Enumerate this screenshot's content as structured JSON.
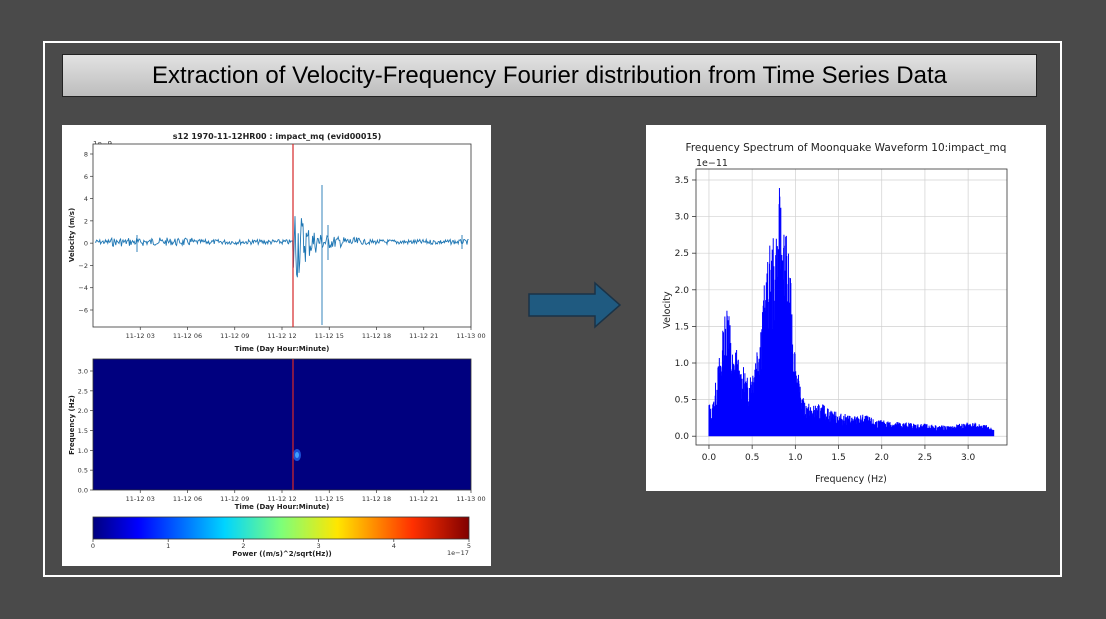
{
  "slide": {
    "title": "Extraction of Velocity-Frequency Fourier distribution from Time Series Data"
  },
  "left_figure": {
    "title": "s12 1970-11-12HR00 : impact_mq (evid00015)",
    "waveform": {
      "ylabel": "Velocity (m/s)",
      "xlabel": "Time (Day Hour:Minute)",
      "offset_label": "1e−9",
      "yticks": [
        "8",
        "6",
        "4",
        "2",
        "0",
        "−2",
        "−4",
        "−6"
      ],
      "xticks": [
        "11-12 03",
        "11-12 06",
        "11-12 09",
        "11-12 12",
        "11-12 15",
        "11-12 18",
        "11-12 21",
        "11-13 00"
      ],
      "marker_color": "#d62728",
      "trace_color": "#1f77b4"
    },
    "spectrogram": {
      "ylabel": "Frequency (Hz)",
      "xlabel": "Time (Day Hour:Minute)",
      "yticks": [
        "3.0",
        "2.5",
        "2.0",
        "1.5",
        "1.0",
        "0.5",
        "0.0"
      ],
      "xticks": [
        "11-12 03",
        "11-12 06",
        "11-12 09",
        "11-12 12",
        "11-12 15",
        "11-12 18",
        "11-12 21",
        "11-13 00"
      ],
      "background_color": "#00007f"
    },
    "colorbar": {
      "label": "Power ((m/s)^2/sqrt(Hz))",
      "ticks": [
        "0",
        "1",
        "2",
        "3",
        "4",
        "5"
      ],
      "offset_label": "1e−17",
      "colormap": "jet"
    }
  },
  "arrow": {
    "color": "#1f5a80"
  },
  "chart_data": {
    "type": "line",
    "title": "Frequency Spectrum of Moonquake Waveform 10:impact_mq",
    "xlabel": "Frequency (Hz)",
    "ylabel": "Velocity",
    "offset_label": "1e−11",
    "xlim": [
      -0.15,
      3.45
    ],
    "ylim": [
      -0.12,
      3.65
    ],
    "xticks": [
      "0.0",
      "0.5",
      "1.0",
      "1.5",
      "2.0",
      "2.5",
      "3.0"
    ],
    "yticks": [
      "0.0",
      "0.5",
      "1.0",
      "1.5",
      "2.0",
      "2.5",
      "3.0",
      "3.5"
    ],
    "grid": true,
    "color": "#0000ff",
    "series": [
      {
        "x": [
          0.0,
          0.03,
          0.06,
          0.1,
          0.13,
          0.17,
          0.2,
          0.22,
          0.25,
          0.28,
          0.31,
          0.35,
          0.4,
          0.45,
          0.5,
          0.55,
          0.6,
          0.65,
          0.7,
          0.75,
          0.8,
          0.82,
          0.85,
          0.88,
          0.92,
          0.96,
          1.0,
          1.05,
          1.1,
          1.2,
          1.3,
          1.4,
          1.5,
          1.6,
          1.7,
          1.8,
          1.9,
          2.0,
          2.2,
          2.4,
          2.6,
          2.8,
          3.0,
          3.2,
          3.3
        ],
        "y": [
          0.5,
          0.35,
          0.6,
          0.95,
          1.2,
          1.55,
          1.9,
          2.15,
          1.45,
          1.1,
          1.3,
          1.0,
          0.95,
          0.8,
          1.0,
          1.3,
          1.7,
          2.2,
          2.6,
          2.75,
          3.0,
          3.5,
          3.1,
          2.9,
          2.6,
          1.9,
          1.2,
          0.7,
          0.5,
          0.42,
          0.45,
          0.38,
          0.32,
          0.3,
          0.28,
          0.3,
          0.24,
          0.22,
          0.2,
          0.18,
          0.16,
          0.14,
          0.2,
          0.16,
          0.1
        ]
      }
    ]
  }
}
